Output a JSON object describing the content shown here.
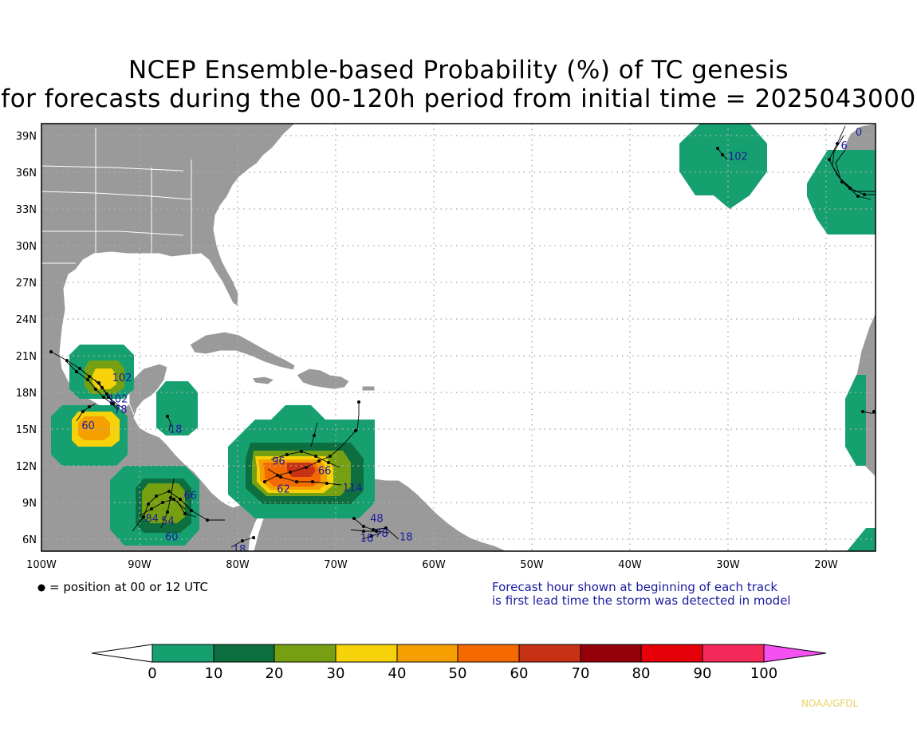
{
  "title": {
    "line1": "NCEP Ensemble-based Probability (%) of TC genesis",
    "line2": "for forecasts during the 00-120h period from initial time = 2025043000"
  },
  "map": {
    "lon_ticks": [
      "100W",
      "90W",
      "80W",
      "70W",
      "60W",
      "50W",
      "40W",
      "30W",
      "20W"
    ],
    "lat_ticks": [
      "39N",
      "36N",
      "33N",
      "30N",
      "27N",
      "24N",
      "21N",
      "18N",
      "15N",
      "12N",
      "9N",
      "6N"
    ],
    "track_labels": [
      {
        "text": "102",
        "lon": -92.8,
        "lat": 18.9
      },
      {
        "text": "102",
        "lon": -93.2,
        "lat": 17.2
      },
      {
        "text": "78",
        "lon": -92.6,
        "lat": 16.3
      },
      {
        "text": "60",
        "lon": -95.9,
        "lat": 15.0
      },
      {
        "text": "18",
        "lon": -87.0,
        "lat": 14.7
      },
      {
        "text": "66",
        "lon": -85.5,
        "lat": 9.3
      },
      {
        "text": "84",
        "lon": -89.4,
        "lat": 7.4
      },
      {
        "text": "54",
        "lon": -87.8,
        "lat": 7.2
      },
      {
        "text": "60",
        "lon": -87.4,
        "lat": 5.9
      },
      {
        "text": "18",
        "lon": -80.5,
        "lat": 4.9
      },
      {
        "text": "96",
        "lon": -76.5,
        "lat": 12.1
      },
      {
        "text": "66",
        "lon": -71.8,
        "lat": 11.3
      },
      {
        "text": "62",
        "lon": -76.0,
        "lat": 9.8
      },
      {
        "text": "114",
        "lon": -69.3,
        "lat": 9.9
      },
      {
        "text": "48",
        "lon": -66.5,
        "lat": 7.4
      },
      {
        "text": "78",
        "lon": -66.0,
        "lat": 6.2
      },
      {
        "text": "18",
        "lon": -67.5,
        "lat": 5.8
      },
      {
        "text": "18",
        "lon": -63.5,
        "lat": 5.9
      },
      {
        "text": "102",
        "lon": -30.0,
        "lat": 37.0
      },
      {
        "text": "0",
        "lon": -17.0,
        "lat": 39.0
      },
      {
        "text": "6",
        "lon": -18.5,
        "lat": 37.9
      }
    ]
  },
  "notes": {
    "position_legend": "= position at 00 or 12 UTC",
    "forecast_hour_line1": "Forecast hour shown at beginning of each track",
    "forecast_hour_line2": "is first lead time the storm was detected in model"
  },
  "colorbar": {
    "ticks": [
      "0",
      "10",
      "20",
      "30",
      "40",
      "50",
      "60",
      "70",
      "80",
      "90",
      "100"
    ],
    "colors": [
      "#ffffff",
      "#16a070",
      "#0d6e40",
      "#76a012",
      "#f5d20a",
      "#f5a000",
      "#f56a00",
      "#c83214",
      "#96000a",
      "#e6000a",
      "#f5285a",
      "#f550f0"
    ]
  },
  "credit": "NOAA/GFDL"
}
